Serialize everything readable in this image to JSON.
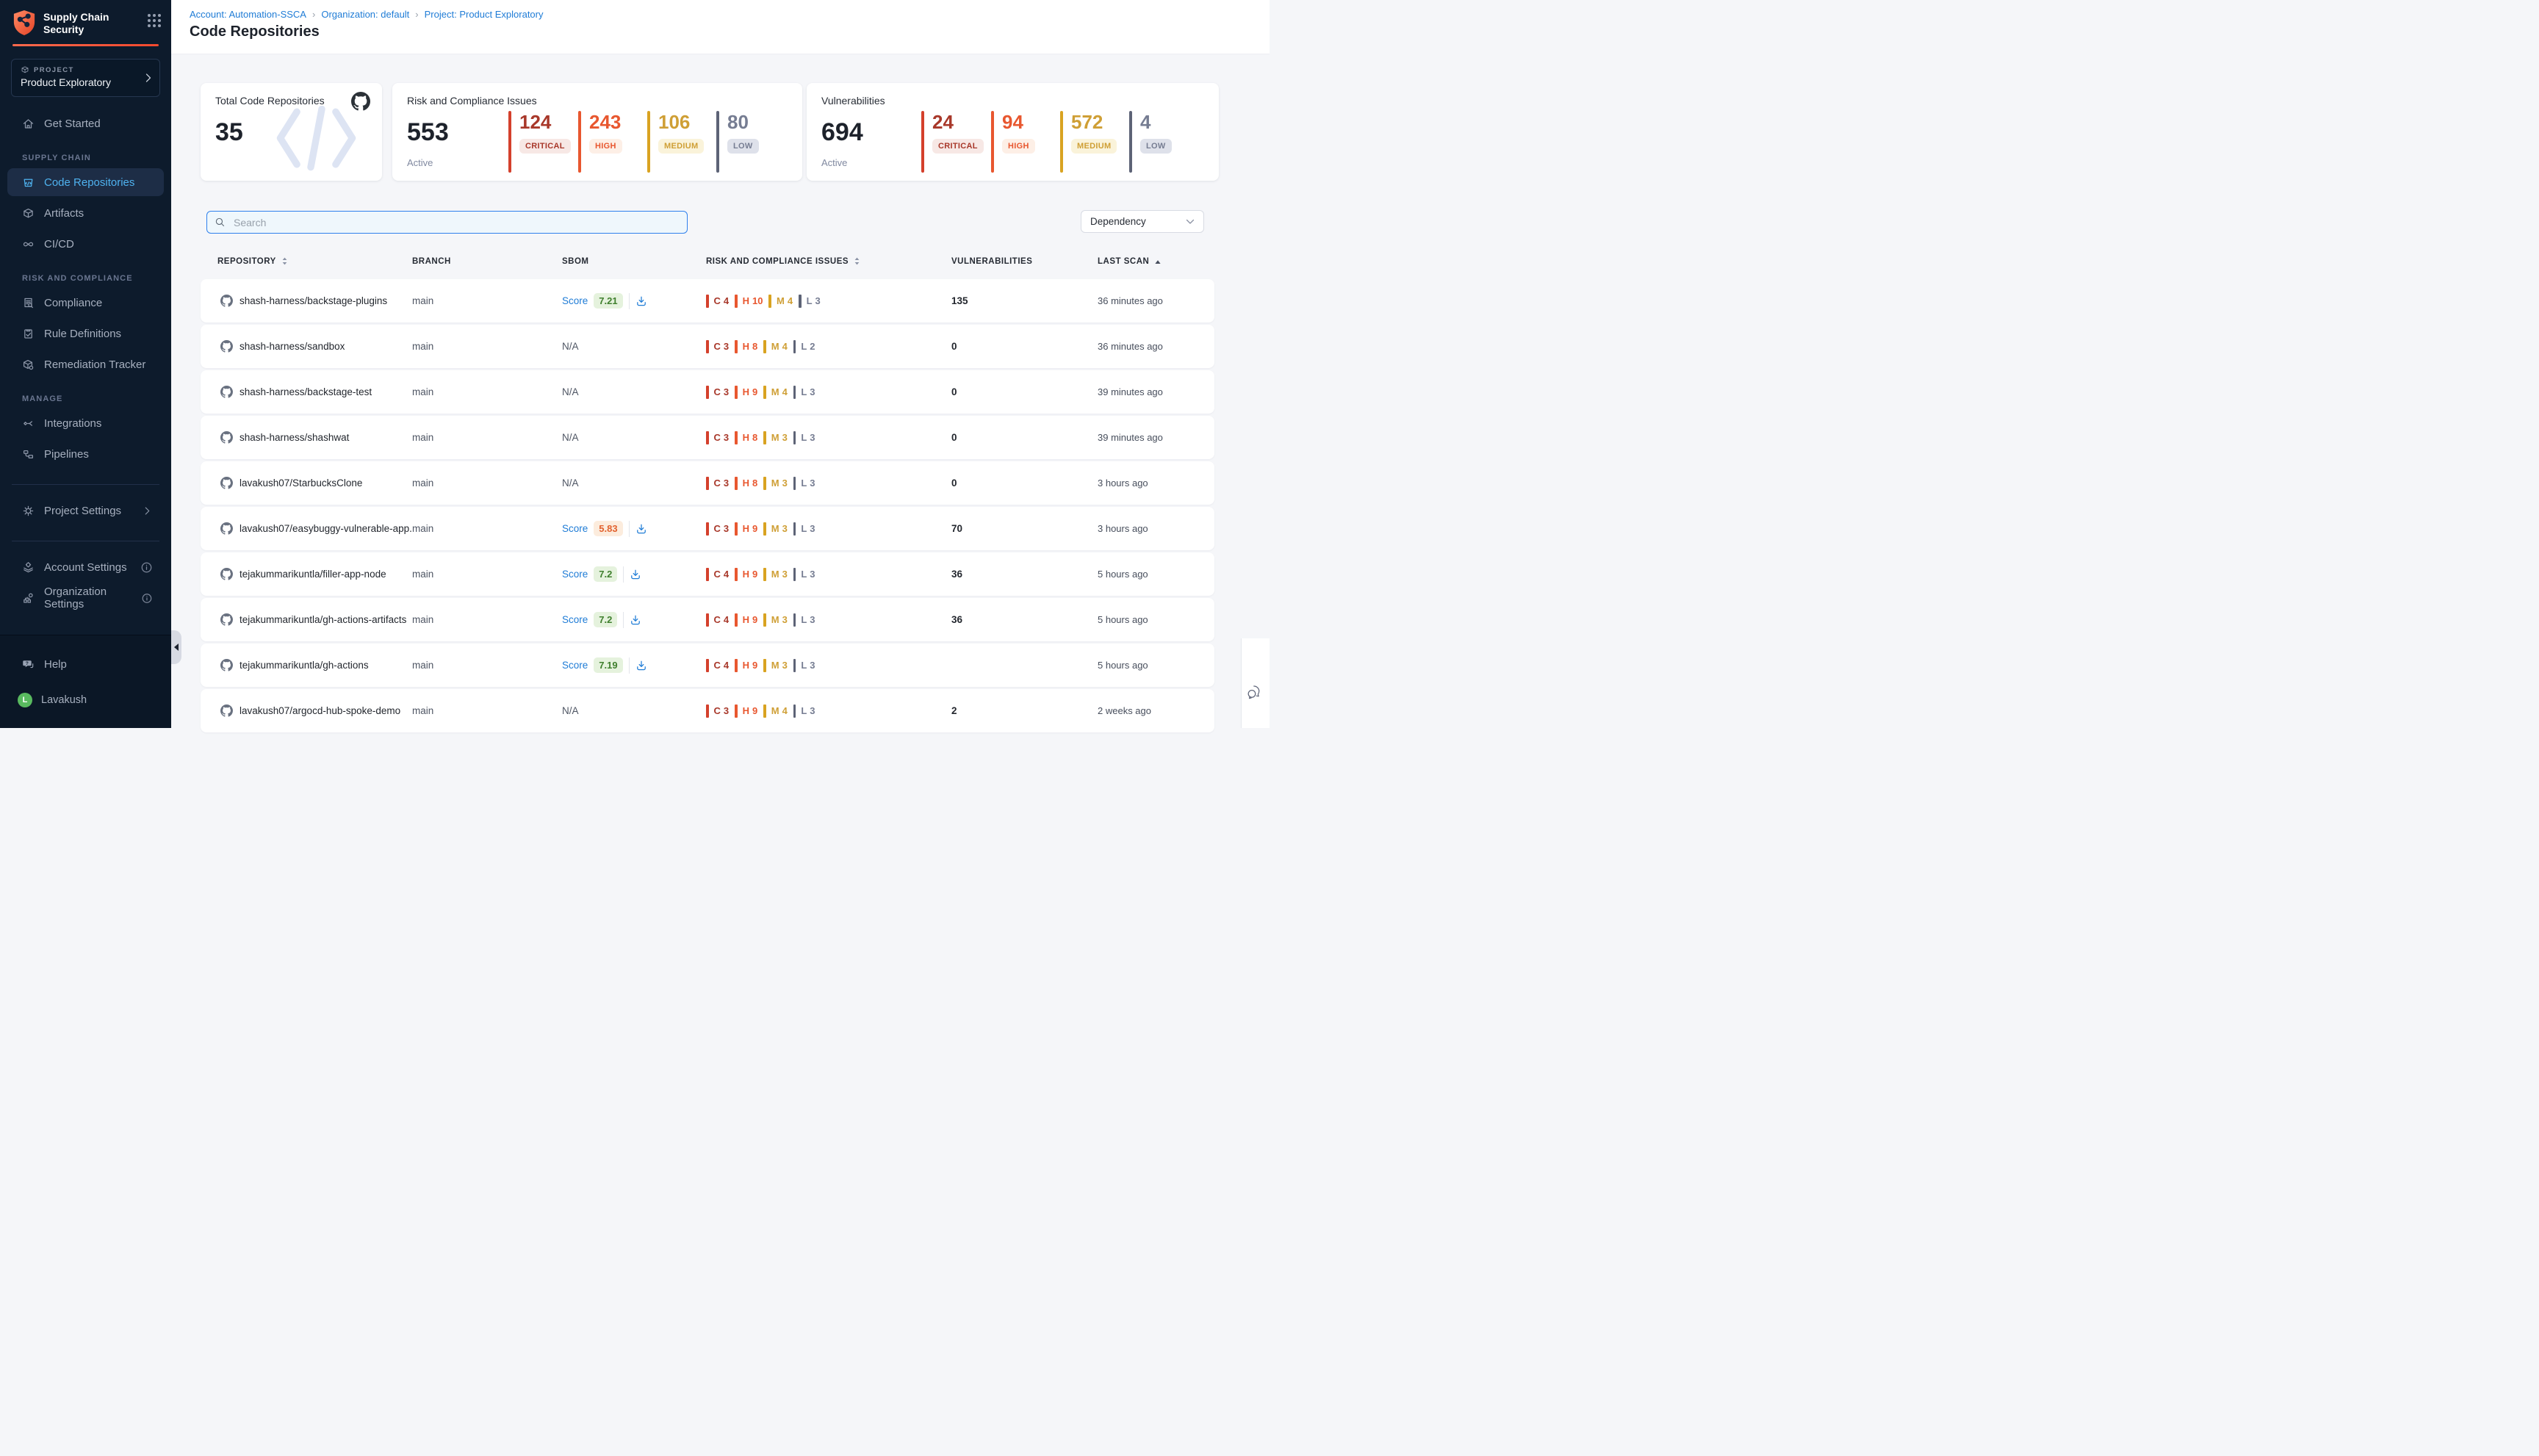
{
  "sidebar": {
    "logo_line1": "Supply Chain",
    "logo_line2": "Security",
    "project_label": "PROJECT",
    "project_name": "Product Exploratory",
    "sections": [
      {
        "items": [
          {
            "label": "Get Started",
            "icon": "home"
          }
        ]
      },
      {
        "label": "SUPPLY CHAIN",
        "items": [
          {
            "label": "Code Repositories",
            "icon": "repo",
            "active": true
          },
          {
            "label": "Artifacts",
            "icon": "cube"
          },
          {
            "label": "CI/CD",
            "icon": "infinity"
          }
        ]
      },
      {
        "label": "RISK AND COMPLIANCE",
        "items": [
          {
            "label": "Compliance",
            "icon": "docsearch"
          },
          {
            "label": "Rule Definitions",
            "icon": "clipboard"
          },
          {
            "label": "Remediation Tracker",
            "icon": "remediation"
          }
        ]
      },
      {
        "label": "MANAGE",
        "items": [
          {
            "label": "Integrations",
            "icon": "integrations"
          },
          {
            "label": "Pipelines",
            "icon": "pipelines"
          }
        ]
      }
    ],
    "footer": [
      {
        "divider": true
      },
      {
        "label": "Project Settings",
        "icon": "gear",
        "chevron": true
      },
      {
        "divider": true
      },
      {
        "label": "Account Settings",
        "icon": "account",
        "info": true
      },
      {
        "label": "Organization Settings",
        "icon": "org",
        "info": true
      }
    ],
    "help_label": "Help",
    "user_initial": "L",
    "user_name": "Lavakush"
  },
  "breadcrumb": {
    "items": [
      "Account: Automation-SSCA",
      "Organization: default",
      "Project: Product Exploratory"
    ]
  },
  "page_title": "Code Repositories",
  "summary_cards": {
    "total": {
      "label": "Total Code Repositories",
      "value": "35"
    },
    "risk": {
      "label": "Risk and Compliance Issues",
      "value": "553",
      "sublabel": "Active",
      "severities": [
        {
          "id": "critical",
          "label": "CRITICAL",
          "value": "124"
        },
        {
          "id": "high",
          "label": "HIGH",
          "value": "243"
        },
        {
          "id": "medium",
          "label": "MEDIUM",
          "value": "106"
        },
        {
          "id": "low",
          "label": "LOW",
          "value": "80"
        }
      ]
    },
    "vulnerabilities": {
      "label": "Vulnerabilities",
      "value": "694",
      "sublabel": "Active",
      "severities": [
        {
          "id": "critical",
          "label": "CRITICAL",
          "value": "24"
        },
        {
          "id": "high",
          "label": "HIGH",
          "value": "94"
        },
        {
          "id": "medium",
          "label": "MEDIUM",
          "value": "572"
        },
        {
          "id": "low",
          "label": "LOW",
          "value": "4"
        }
      ]
    }
  },
  "filters": {
    "search_placeholder": "Search",
    "dropdown_value": "Dependency"
  },
  "table": {
    "columns": [
      {
        "label": "REPOSITORY",
        "sort": "both"
      },
      {
        "label": "BRANCH"
      },
      {
        "label": "SBOM"
      },
      {
        "label": "RISK AND COMPLIANCE ISSUES",
        "sort": "both"
      },
      {
        "label": "VULNERABILITIES"
      },
      {
        "label": "LAST SCAN",
        "sort": "asc"
      }
    ],
    "score_label": "Score",
    "na_label": "N/A",
    "rows": [
      {
        "repo": "shash-harness/backstage-plugins",
        "branch": "main",
        "sbom": {
          "score": "7.21",
          "tone": "green"
        },
        "risk": [
          {
            "id": "critical",
            "letter": "C",
            "count": "4"
          },
          {
            "id": "high",
            "letter": "H",
            "count": "10"
          },
          {
            "id": "medium",
            "letter": "M",
            "count": "4"
          },
          {
            "id": "low",
            "letter": "L",
            "count": "3"
          }
        ],
        "vulnerabilities": "135",
        "last_scan": "36 minutes ago"
      },
      {
        "repo": "shash-harness/sandbox",
        "branch": "main",
        "sbom": {
          "na": true
        },
        "risk": [
          {
            "id": "critical",
            "letter": "C",
            "count": "3"
          },
          {
            "id": "high",
            "letter": "H",
            "count": "8"
          },
          {
            "id": "medium",
            "letter": "M",
            "count": "4"
          },
          {
            "id": "low",
            "letter": "L",
            "count": "2"
          }
        ],
        "vulnerabilities": "0",
        "last_scan": "36 minutes ago"
      },
      {
        "repo": "shash-harness/backstage-test",
        "branch": "main",
        "sbom": {
          "na": true
        },
        "risk": [
          {
            "id": "critical",
            "letter": "C",
            "count": "3"
          },
          {
            "id": "high",
            "letter": "H",
            "count": "9"
          },
          {
            "id": "medium",
            "letter": "M",
            "count": "4"
          },
          {
            "id": "low",
            "letter": "L",
            "count": "3"
          }
        ],
        "vulnerabilities": "0",
        "last_scan": "39 minutes ago"
      },
      {
        "repo": "shash-harness/shashwat",
        "branch": "main",
        "sbom": {
          "na": true
        },
        "risk": [
          {
            "id": "critical",
            "letter": "C",
            "count": "3"
          },
          {
            "id": "high",
            "letter": "H",
            "count": "8"
          },
          {
            "id": "medium",
            "letter": "M",
            "count": "3"
          },
          {
            "id": "low",
            "letter": "L",
            "count": "3"
          }
        ],
        "vulnerabilities": "0",
        "last_scan": "39 minutes ago"
      },
      {
        "repo": "lavakush07/StarbucksClone",
        "branch": "main",
        "sbom": {
          "na": true
        },
        "risk": [
          {
            "id": "critical",
            "letter": "C",
            "count": "3"
          },
          {
            "id": "high",
            "letter": "H",
            "count": "8"
          },
          {
            "id": "medium",
            "letter": "M",
            "count": "3"
          },
          {
            "id": "low",
            "letter": "L",
            "count": "3"
          }
        ],
        "vulnerabilities": "0",
        "last_scan": "3 hours ago"
      },
      {
        "repo": "lavakush07/easybuggy-vulnerable-app...",
        "branch": "main",
        "sbom": {
          "score": "5.83",
          "tone": "orange"
        },
        "risk": [
          {
            "id": "critical",
            "letter": "C",
            "count": "3"
          },
          {
            "id": "high",
            "letter": "H",
            "count": "9"
          },
          {
            "id": "medium",
            "letter": "M",
            "count": "3"
          },
          {
            "id": "low",
            "letter": "L",
            "count": "3"
          }
        ],
        "vulnerabilities": "70",
        "last_scan": "3 hours ago"
      },
      {
        "repo": "tejakummarikuntla/filler-app-node",
        "branch": "main",
        "sbom": {
          "score": "7.2",
          "tone": "green"
        },
        "risk": [
          {
            "id": "critical",
            "letter": "C",
            "count": "4"
          },
          {
            "id": "high",
            "letter": "H",
            "count": "9"
          },
          {
            "id": "medium",
            "letter": "M",
            "count": "3"
          },
          {
            "id": "low",
            "letter": "L",
            "count": "3"
          }
        ],
        "vulnerabilities": "36",
        "last_scan": "5 hours ago"
      },
      {
        "repo": "tejakummarikuntla/gh-actions-artifacts",
        "branch": "main",
        "sbom": {
          "score": "7.2",
          "tone": "green"
        },
        "risk": [
          {
            "id": "critical",
            "letter": "C",
            "count": "4"
          },
          {
            "id": "high",
            "letter": "H",
            "count": "9"
          },
          {
            "id": "medium",
            "letter": "M",
            "count": "3"
          },
          {
            "id": "low",
            "letter": "L",
            "count": "3"
          }
        ],
        "vulnerabilities": "36",
        "last_scan": "5 hours ago"
      },
      {
        "repo": "tejakummarikuntla/gh-actions",
        "branch": "main",
        "sbom": {
          "score": "7.19",
          "tone": "green"
        },
        "risk": [
          {
            "id": "critical",
            "letter": "C",
            "count": "4"
          },
          {
            "id": "high",
            "letter": "H",
            "count": "9"
          },
          {
            "id": "medium",
            "letter": "M",
            "count": "3"
          },
          {
            "id": "low",
            "letter": "L",
            "count": "3"
          }
        ],
        "vulnerabilities": "",
        "last_scan": "5 hours ago"
      },
      {
        "repo": "lavakush07/argocd-hub-spoke-demo",
        "branch": "main",
        "sbom": {
          "na": true
        },
        "risk": [
          {
            "id": "critical",
            "letter": "C",
            "count": "3"
          },
          {
            "id": "high",
            "letter": "H",
            "count": "9"
          },
          {
            "id": "medium",
            "letter": "M",
            "count": "4"
          },
          {
            "id": "low",
            "letter": "L",
            "count": "3"
          }
        ],
        "vulnerabilities": "2",
        "last_scan": "2 weeks ago"
      }
    ]
  },
  "colors": {
    "accent_orange": "#f4492e",
    "link_blue": "#1f7cd6",
    "severity": {
      "critical": {
        "bar": "#d4402c",
        "text": "#a8382a",
        "badge_bg": "#f7e8e5"
      },
      "high": {
        "bar": "#e8572f",
        "text": "#e8572f",
        "badge_bg": "#fdefe6"
      },
      "medium": {
        "bar": "#d9a321",
        "text": "#cf9f35",
        "badge_bg": "#faf3da"
      },
      "low": {
        "bar": "#5d6376",
        "text": "#767d92",
        "badge_bg": "#dee1ea"
      }
    },
    "score_tones": {
      "green": {
        "bg": "#e5f2dd",
        "text": "#3f7f2d"
      },
      "orange": {
        "bg": "#fcecdd",
        "text": "#e2622f"
      }
    }
  }
}
